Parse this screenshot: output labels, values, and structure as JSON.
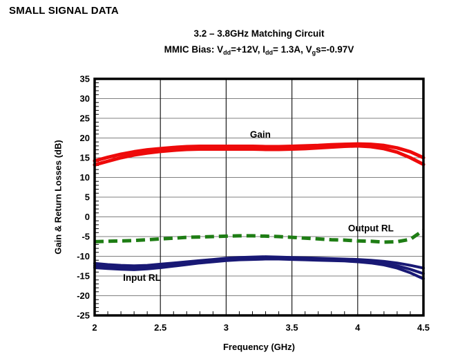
{
  "page": {
    "heading": "SMALL SIGNAL DATA"
  },
  "chart_data": {
    "type": "line",
    "title": "3.2 – 3.8GHz Matching Circuit",
    "subtitle_segments": [
      {
        "t": "MMIC Bias: V"
      },
      {
        "t": "dd",
        "sub": true
      },
      {
        "t": "=+12V, I"
      },
      {
        "t": "dd",
        "sub": true
      },
      {
        "t": "= 1.3A, V"
      },
      {
        "t": "g",
        "sub": true
      },
      {
        "t": "s=-0.97V"
      }
    ],
    "xlabel": "Frequency (GHz)",
    "ylabel": "Gain & Return Losses (dB)",
    "xlim": [
      2,
      4.5
    ],
    "ylim": [
      -25,
      35
    ],
    "xticks": [
      2,
      2.5,
      3,
      3.5,
      4,
      4.5
    ],
    "xtick_labels": [
      "2",
      "2.5",
      "3",
      "3.5",
      "4",
      "4.5"
    ],
    "yticks": [
      35,
      30,
      25,
      20,
      15,
      10,
      5,
      0,
      -5,
      -10,
      -15,
      -20,
      -25
    ],
    "x_minor_step": 0.1,
    "y_minor_step": 1,
    "grid": true,
    "legend_position": "inline-annotations",
    "colors": {
      "grid_h": "#7f7f7f",
      "grid_v": "#1a1a1a",
      "axis": "#000000",
      "gain": "#ee0a0a",
      "output_rl": "#1e7d14",
      "input_rl": "#191975"
    },
    "x": [
      2.0,
      2.1,
      2.2,
      2.3,
      2.4,
      2.5,
      2.6,
      2.7,
      2.8,
      2.9,
      3.0,
      3.1,
      3.2,
      3.3,
      3.4,
      3.5,
      3.6,
      3.7,
      3.8,
      3.9,
      4.0,
      4.1,
      4.2,
      4.3,
      4.4,
      4.5
    ],
    "series": [
      {
        "name": "Output RL",
        "color": "#1e7d14",
        "width": 5,
        "dash": "13 7",
        "label": {
          "text": "Output RL",
          "x": 4.1,
          "y": -2.9
        },
        "traces": [
          [
            -6.3,
            -6.2,
            -6.1,
            -6.0,
            -5.8,
            -5.6,
            -5.4,
            -5.2,
            -5.1,
            -5.0,
            -4.9,
            -4.8,
            -4.8,
            -4.9,
            -5.0,
            -5.2,
            -5.4,
            -5.6,
            -5.8,
            -5.9,
            -6.1,
            -6.2,
            -6.4,
            -6.3,
            -5.7,
            -3.4
          ]
        ]
      },
      {
        "name": "Input RL",
        "color": "#191975",
        "width": 4,
        "dash": null,
        "label": {
          "text": "Input RL",
          "x": 2.36,
          "y": -15.4
        },
        "traces": [
          [
            -11.8,
            -12.1,
            -12.3,
            -12.4,
            -12.3,
            -12.0,
            -11.7,
            -11.4,
            -11.1,
            -10.8,
            -10.5,
            -10.3,
            -10.2,
            -10.1,
            -10.2,
            -10.3,
            -10.4,
            -10.5,
            -10.6,
            -10.7,
            -10.8,
            -11.0,
            -11.3,
            -11.7,
            -12.3,
            -13.0
          ],
          [
            -12.4,
            -12.7,
            -12.9,
            -13.0,
            -12.8,
            -12.5,
            -12.2,
            -11.8,
            -11.4,
            -11.1,
            -10.9,
            -10.7,
            -10.6,
            -10.5,
            -10.5,
            -10.6,
            -10.7,
            -10.8,
            -10.9,
            -11.0,
            -11.1,
            -11.4,
            -11.8,
            -12.4,
            -13.3,
            -14.4
          ],
          [
            -12.9,
            -13.1,
            -13.3,
            -13.4,
            -13.2,
            -12.9,
            -12.5,
            -12.1,
            -11.7,
            -11.4,
            -11.1,
            -10.9,
            -10.8,
            -10.7,
            -10.7,
            -10.8,
            -10.9,
            -11.0,
            -11.1,
            -11.2,
            -11.4,
            -11.7,
            -12.2,
            -13.0,
            -14.2,
            -15.7
          ]
        ]
      },
      {
        "name": "Gain",
        "color": "#ee0a0a",
        "width": 5,
        "dash": null,
        "label": {
          "text": "Gain",
          "x": 3.26,
          "y": 20.9
        },
        "traces": [
          [
            14.2,
            15.1,
            15.9,
            16.5,
            17.0,
            17.3,
            17.6,
            17.8,
            17.9,
            17.9,
            17.9,
            17.9,
            17.9,
            17.8,
            17.8,
            17.9,
            18.0,
            18.1,
            18.3,
            18.4,
            18.5,
            18.4,
            18.1,
            17.5,
            16.5,
            15.0
          ],
          [
            13.2,
            14.1,
            15.0,
            15.7,
            16.2,
            16.6,
            16.9,
            17.1,
            17.2,
            17.2,
            17.2,
            17.2,
            17.2,
            17.1,
            17.1,
            17.2,
            17.3,
            17.5,
            17.7,
            17.9,
            18.0,
            17.8,
            17.3,
            16.4,
            15.0,
            13.3
          ]
        ]
      }
    ]
  }
}
